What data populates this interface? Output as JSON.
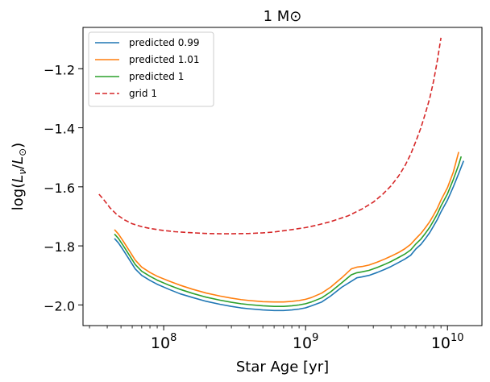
{
  "chart_data": {
    "type": "line",
    "title": "1 M⊙",
    "xlabel": "Star Age [yr]",
    "ylabel_parts": {
      "main": "log(",
      "l1": "L",
      "sub1": "ν",
      "slash": "/",
      "l2": "L",
      "sub2": "⊙",
      "close": ")"
    },
    "xscale": "log",
    "xlim": [
      27000000.0,
      17500000000.0
    ],
    "ylim": [
      -2.07,
      -1.06
    ],
    "x_ticks": [
      {
        "value": 100000000.0,
        "base": "10",
        "exp": "8"
      },
      {
        "value": 1000000000.0,
        "base": "10",
        "exp": "9"
      },
      {
        "value": 10000000000.0,
        "base": "10",
        "exp": "10"
      }
    ],
    "y_ticks": [
      {
        "value": -2.0,
        "label": "−2.0"
      },
      {
        "value": -1.8,
        "label": "−1.8"
      },
      {
        "value": -1.6,
        "label": "−1.6"
      },
      {
        "value": -1.4,
        "label": "−1.4"
      },
      {
        "value": -1.2,
        "label": "−1.2"
      }
    ],
    "legend_position": "top-left",
    "grid": false,
    "series": [
      {
        "name": "predicted 0.99",
        "color": "#1f77b4",
        "dash": "solid",
        "x": [
          45000000.0,
          48000000.0,
          52000000.0,
          57000000.0,
          63000000.0,
          70000000.0,
          80000000.0,
          90000000.0,
          110000000.0,
          130000000.0,
          160000000.0,
          200000000.0,
          250000000.0,
          300000000.0,
          350000000.0,
          400000000.0,
          500000000.0,
          600000000.0,
          700000000.0,
          800000000.0,
          900000000.0,
          1000000000.0,
          1100000000.0,
          1300000000.0,
          1500000000.0,
          1800000000.0,
          2100000000.0,
          2300000000.0,
          2500000000.0,
          2800000000.0,
          3200000000.0,
          3600000000.0,
          4000000000.0,
          4500000000.0,
          5000000000.0,
          5500000000.0,
          6000000000.0,
          6500000000.0,
          7000000000.0,
          7500000000.0,
          8000000000.0,
          8500000000.0,
          9000000000.0,
          10000000000.0,
          11000000000.0,
          12000000000.0,
          13000000000.0
        ],
        "y": [
          -1.775,
          -1.79,
          -1.815,
          -1.845,
          -1.878,
          -1.9,
          -1.917,
          -1.93,
          -1.948,
          -1.962,
          -1.975,
          -1.988,
          -1.998,
          -2.005,
          -2.01,
          -2.013,
          -2.017,
          -2.019,
          -2.019,
          -2.017,
          -2.014,
          -2.01,
          -2.003,
          -1.99,
          -1.97,
          -1.94,
          -1.92,
          -1.908,
          -1.905,
          -1.9,
          -1.89,
          -1.88,
          -1.87,
          -1.857,
          -1.845,
          -1.832,
          -1.81,
          -1.795,
          -1.775,
          -1.755,
          -1.732,
          -1.71,
          -1.685,
          -1.645,
          -1.6,
          -1.555,
          -1.512
        ]
      },
      {
        "name": "predicted 1.01",
        "color": "#ff7f0e",
        "dash": "solid",
        "x": [
          45000000.0,
          48000000.0,
          52000000.0,
          57000000.0,
          63000000.0,
          70000000.0,
          80000000.0,
          90000000.0,
          110000000.0,
          130000000.0,
          160000000.0,
          200000000.0,
          250000000.0,
          300000000.0,
          350000000.0,
          400000000.0,
          500000000.0,
          600000000.0,
          700000000.0,
          800000000.0,
          900000000.0,
          1000000000.0,
          1100000000.0,
          1300000000.0,
          1500000000.0,
          1800000000.0,
          2100000000.0,
          2300000000.0,
          2500000000.0,
          2800000000.0,
          3200000000.0,
          3600000000.0,
          4000000000.0,
          4500000000.0,
          5000000000.0,
          5500000000.0,
          6000000000.0,
          6500000000.0,
          7000000000.0,
          7500000000.0,
          8000000000.0,
          8500000000.0,
          9000000000.0,
          10000000000.0,
          11000000000.0,
          12000000000.0
        ],
        "y": [
          -1.745,
          -1.76,
          -1.785,
          -1.815,
          -1.848,
          -1.872,
          -1.89,
          -1.903,
          -1.92,
          -1.933,
          -1.947,
          -1.96,
          -1.97,
          -1.977,
          -1.982,
          -1.985,
          -1.989,
          -1.99,
          -1.99,
          -1.988,
          -1.985,
          -1.981,
          -1.975,
          -1.96,
          -1.94,
          -1.908,
          -1.878,
          -1.872,
          -1.87,
          -1.865,
          -1.855,
          -1.845,
          -1.835,
          -1.823,
          -1.81,
          -1.795,
          -1.775,
          -1.758,
          -1.738,
          -1.718,
          -1.695,
          -1.672,
          -1.645,
          -1.603,
          -1.55,
          -1.482
        ]
      },
      {
        "name": "predicted 1",
        "color": "#2ca02c",
        "dash": "solid",
        "x": [
          45000000.0,
          48000000.0,
          52000000.0,
          57000000.0,
          63000000.0,
          70000000.0,
          80000000.0,
          90000000.0,
          110000000.0,
          130000000.0,
          160000000.0,
          200000000.0,
          250000000.0,
          300000000.0,
          350000000.0,
          400000000.0,
          500000000.0,
          600000000.0,
          700000000.0,
          800000000.0,
          900000000.0,
          1000000000.0,
          1100000000.0,
          1300000000.0,
          1500000000.0,
          1800000000.0,
          2100000000.0,
          2300000000.0,
          2500000000.0,
          2800000000.0,
          3200000000.0,
          3600000000.0,
          4000000000.0,
          4500000000.0,
          5000000000.0,
          5500000000.0,
          6000000000.0,
          6500000000.0,
          7000000000.0,
          7500000000.0,
          8000000000.0,
          8500000000.0,
          9000000000.0,
          10000000000.0,
          11000000000.0,
          12000000000.0,
          12500000000.0
        ],
        "y": [
          -1.76,
          -1.775,
          -1.8,
          -1.83,
          -1.863,
          -1.886,
          -1.903,
          -1.916,
          -1.934,
          -1.947,
          -1.961,
          -1.974,
          -1.984,
          -1.991,
          -1.996,
          -1.999,
          -2.003,
          -2.005,
          -2.005,
          -2.003,
          -2.0,
          -1.996,
          -1.99,
          -1.976,
          -1.956,
          -1.925,
          -1.898,
          -1.891,
          -1.888,
          -1.883,
          -1.873,
          -1.863,
          -1.853,
          -1.84,
          -1.828,
          -1.814,
          -1.793,
          -1.777,
          -1.757,
          -1.737,
          -1.714,
          -1.691,
          -1.665,
          -1.624,
          -1.575,
          -1.525,
          -1.497
        ]
      },
      {
        "name": "grid 1",
        "color": "#d62728",
        "dash": "dashed",
        "x": [
          35000000.0,
          38000000.0,
          42000000.0,
          47000000.0,
          53000000.0,
          60000000.0,
          70000000.0,
          80000000.0,
          100000000.0,
          120000000.0,
          150000000.0,
          200000000.0,
          250000000.0,
          300000000.0,
          400000000.0,
          500000000.0,
          600000000.0,
          800000000.0,
          1000000000.0,
          1200000000.0,
          1500000000.0,
          2000000000.0,
          2500000000.0,
          3000000000.0,
          3500000000.0,
          4000000000.0,
          4500000000.0,
          5000000000.0,
          5500000000.0,
          6000000000.0,
          6500000000.0,
          7000000000.0,
          7500000000.0,
          8000000000.0,
          8500000000.0,
          9000000000.0
        ],
        "y": [
          -1.625,
          -1.645,
          -1.672,
          -1.695,
          -1.712,
          -1.725,
          -1.735,
          -1.741,
          -1.748,
          -1.752,
          -1.755,
          -1.758,
          -1.759,
          -1.759,
          -1.758,
          -1.756,
          -1.753,
          -1.745,
          -1.738,
          -1.73,
          -1.718,
          -1.698,
          -1.675,
          -1.652,
          -1.625,
          -1.597,
          -1.565,
          -1.53,
          -1.49,
          -1.445,
          -1.4,
          -1.35,
          -1.3,
          -1.24,
          -1.17,
          -1.095
        ]
      }
    ]
  }
}
